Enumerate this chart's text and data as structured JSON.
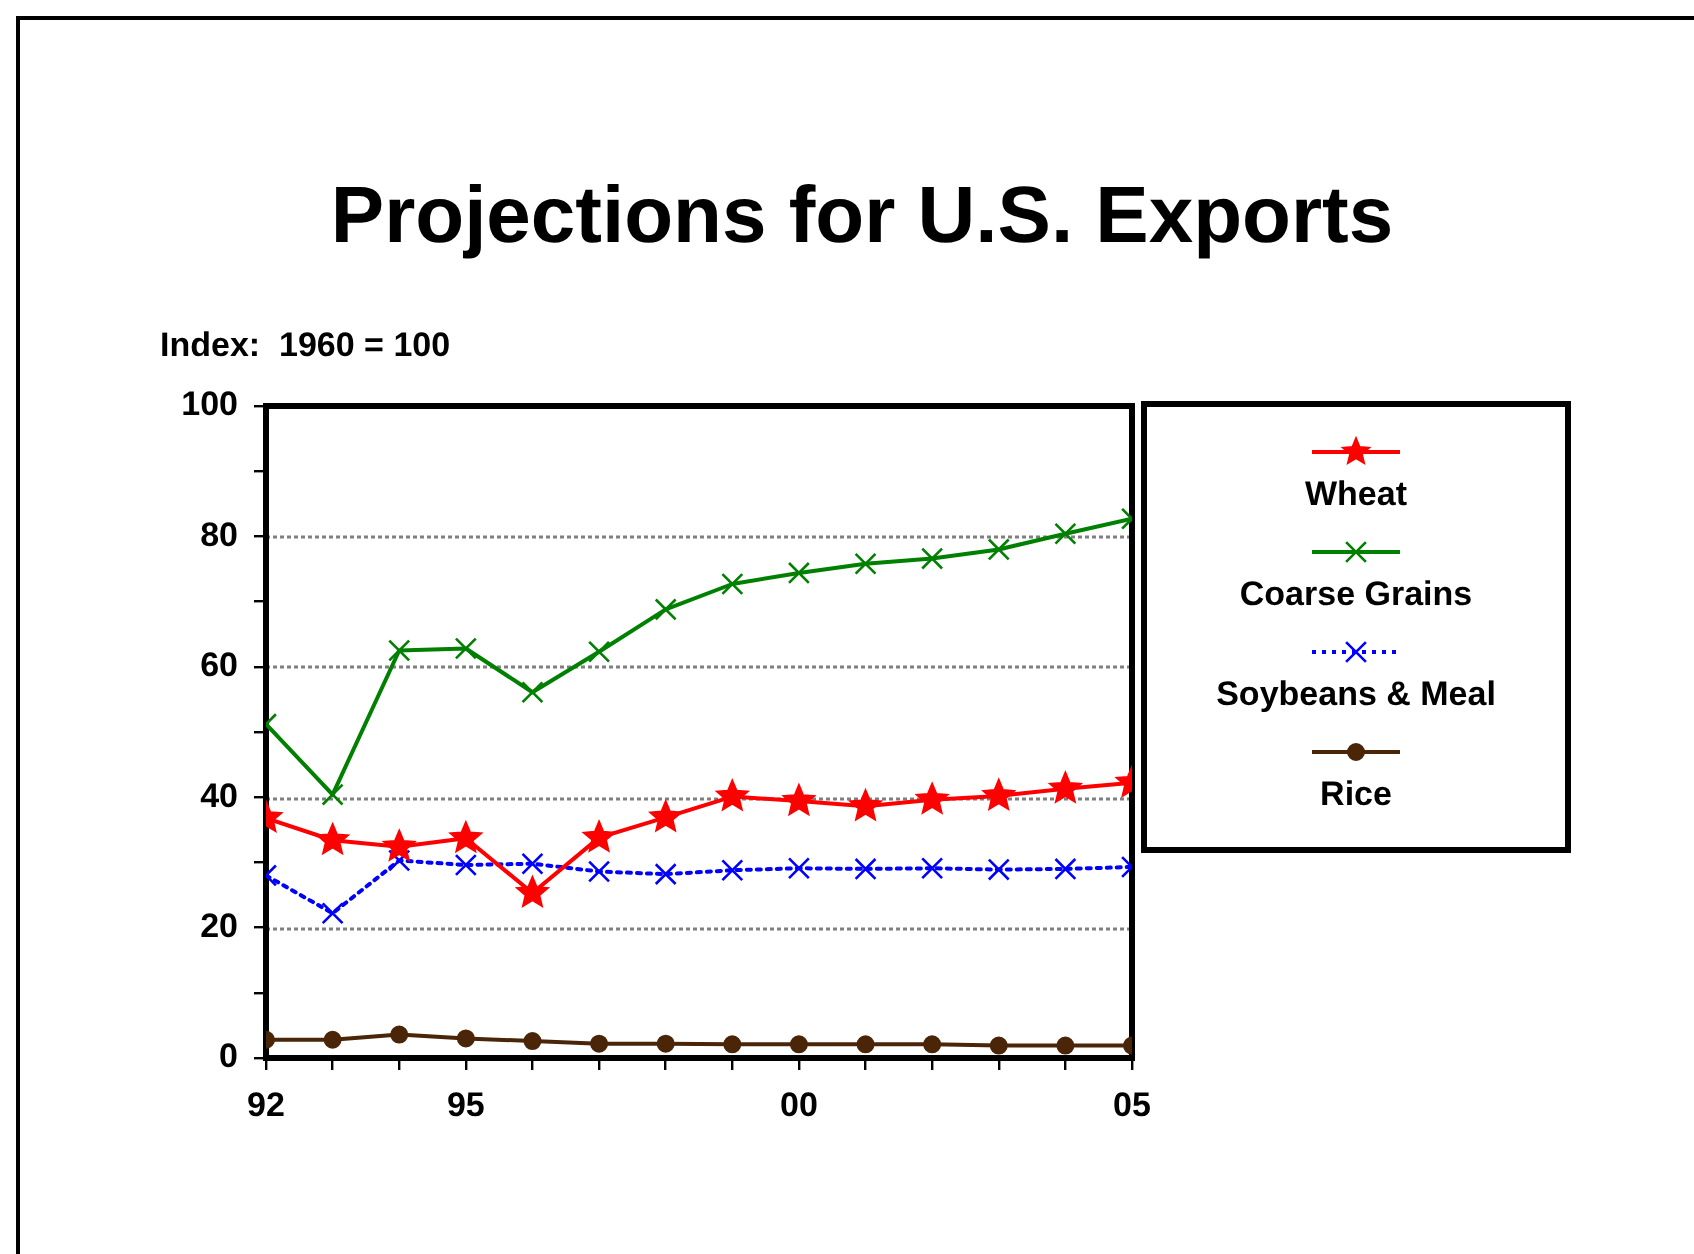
{
  "chart_data": {
    "type": "line",
    "title": "Projections for U.S. Exports",
    "ylabel": "Index:  1960 = 100",
    "x": [
      1992,
      1993,
      1994,
      1995,
      1996,
      1997,
      1998,
      1999,
      2000,
      2001,
      2002,
      2003,
      2004,
      2005
    ],
    "series": [
      {
        "name": "Wheat",
        "color": "#ff0000",
        "marker": "star",
        "line_style": "solid",
        "values": [
          36.8,
          33.4,
          32.4,
          33.7,
          25.3,
          33.8,
          36.9,
          40.1,
          39.4,
          38.6,
          39.6,
          40.2,
          41.3,
          42.2
        ]
      },
      {
        "name": "Coarse Grains",
        "color": "#008000",
        "marker": "cross",
        "line_style": "solid",
        "values": [
          51.2,
          40.4,
          62.5,
          62.8,
          56.1,
          62.3,
          68.8,
          72.7,
          74.4,
          75.8,
          76.6,
          78.0,
          80.4,
          82.7
        ]
      },
      {
        "name": "Soybeans & Meal",
        "color": "#0000ff",
        "marker": "cross",
        "line_style": "dotted",
        "values": [
          28.0,
          22.2,
          30.3,
          29.6,
          29.8,
          28.6,
          28.2,
          28.8,
          29.1,
          29.0,
          29.1,
          28.9,
          29.0,
          29.3
        ]
      },
      {
        "name": "Rice",
        "color": "#4a2508",
        "marker": "circle",
        "line_style": "solid",
        "values": [
          2.8,
          2.8,
          3.6,
          3.0,
          2.6,
          2.2,
          2.2,
          2.1,
          2.1,
          2.1,
          2.1,
          1.9,
          1.9,
          1.9
        ]
      }
    ],
    "xlim": [
      1992,
      2005
    ],
    "xticks": [
      {
        "value": 1992,
        "label": "92"
      },
      {
        "value": 1993,
        "label": null
      },
      {
        "value": 1994,
        "label": null
      },
      {
        "value": 1995,
        "label": "95"
      },
      {
        "value": 1996,
        "label": null
      },
      {
        "value": 1997,
        "label": null
      },
      {
        "value": 1998,
        "label": null
      },
      {
        "value": 1999,
        "label": null
      },
      {
        "value": 2000,
        "label": "00"
      },
      {
        "value": 2001,
        "label": null
      },
      {
        "value": 2002,
        "label": null
      },
      {
        "value": 2003,
        "label": null
      },
      {
        "value": 2004,
        "label": null
      },
      {
        "value": 2005,
        "label": "05"
      }
    ],
    "ylim": [
      0,
      100
    ],
    "yticks": [
      0,
      {
        "value": 10,
        "label": null
      },
      20,
      {
        "value": 30,
        "label": null
      },
      40,
      {
        "value": 50,
        "label": null
      },
      60,
      {
        "value": 70,
        "label": null
      },
      80,
      {
        "value": 90,
        "label": null
      },
      100
    ],
    "grid": "y",
    "legend": "right"
  }
}
